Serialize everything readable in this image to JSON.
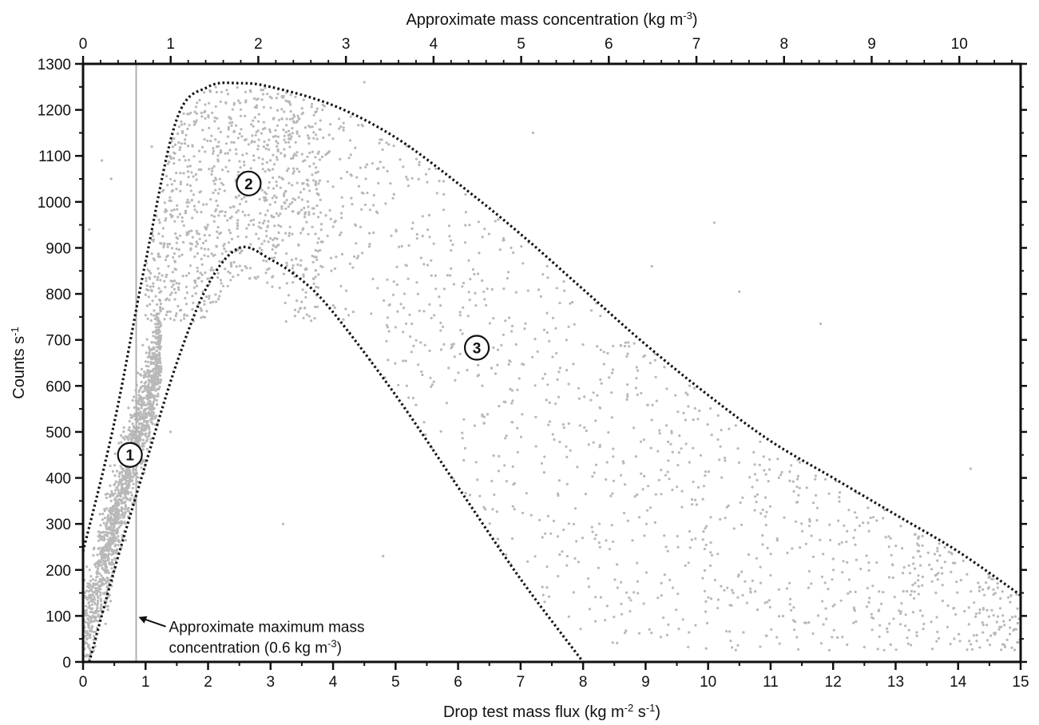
{
  "chart_data": {
    "type": "scatter",
    "title": "",
    "xlabel": "Drop test mass flux (kg m⁻² s⁻¹)",
    "ylabel": "Counts s⁻¹",
    "x2label": "Approximate mass concentration (kg m⁻³)",
    "xlim": [
      0,
      15
    ],
    "ylim": [
      0,
      1300
    ],
    "x2lim": [
      0,
      10.7
    ],
    "x_ticks": [
      "0",
      "1",
      "2",
      "3",
      "4",
      "5",
      "6",
      "7",
      "8",
      "9",
      "10",
      "11",
      "12",
      "13",
      "14",
      "15"
    ],
    "y_ticks": [
      "0",
      "100",
      "200",
      "300",
      "400",
      "500",
      "600",
      "700",
      "800",
      "900",
      "1000",
      "1100",
      "1200",
      "1300"
    ],
    "x2_ticks": [
      "0",
      "1",
      "2",
      "3",
      "4",
      "5",
      "6",
      "7",
      "8",
      "9",
      "10"
    ],
    "grid": false,
    "point_color": "#b8b8b8",
    "envelope_color": "#111111",
    "reference_line_color": "#b0b0b0",
    "reference_line_x": 0.85,
    "series": [
      {
        "kind": "scatter-cloud",
        "regions": [
          {
            "id": 1,
            "x_range": [
              0,
              1.2
            ],
            "y_range": [
              0,
              650
            ],
            "density": "very high"
          },
          {
            "id": 2,
            "x_range": [
              1.0,
              3.5
            ],
            "y_range": [
              700,
              1250
            ],
            "density": "high"
          },
          {
            "id": 3,
            "x_range": [
              3.0,
              15
            ],
            "y_range": [
              0,
              1150
            ],
            "density": "sparse"
          }
        ]
      },
      {
        "kind": "upper-envelope",
        "style": "dotted",
        "points": [
          [
            0,
            240
          ],
          [
            0.5,
            520
          ],
          [
            1.0,
            870
          ],
          [
            1.5,
            1180
          ],
          [
            2.0,
            1250
          ],
          [
            2.5,
            1258
          ],
          [
            3.0,
            1250
          ],
          [
            4.0,
            1210
          ],
          [
            5.0,
            1140
          ],
          [
            6.0,
            1040
          ],
          [
            7.0,
            930
          ],
          [
            8.0,
            810
          ],
          [
            9.0,
            690
          ],
          [
            10.0,
            580
          ],
          [
            11.0,
            480
          ],
          [
            12.0,
            400
          ],
          [
            13.0,
            320
          ],
          [
            14.0,
            240
          ],
          [
            15.0,
            145
          ]
        ]
      },
      {
        "kind": "lower-envelope",
        "style": "dotted",
        "points": [
          [
            0.1,
            0
          ],
          [
            0.5,
            200
          ],
          [
            1.0,
            430
          ],
          [
            1.5,
            650
          ],
          [
            2.0,
            820
          ],
          [
            2.5,
            900
          ],
          [
            3.0,
            875
          ],
          [
            3.5,
            830
          ],
          [
            4.0,
            760
          ],
          [
            5.0,
            580
          ],
          [
            6.0,
            380
          ],
          [
            7.0,
            180
          ],
          [
            8.0,
            0
          ]
        ]
      }
    ],
    "annotations": [
      {
        "id": "region-1",
        "label": "1",
        "x": 0.75,
        "y": 450
      },
      {
        "id": "region-2",
        "label": "2",
        "x": 2.65,
        "y": 1040
      },
      {
        "id": "region-3",
        "label": "3",
        "x": 6.3,
        "y": 683
      },
      {
        "id": "max-conc",
        "lines": [
          "Approximate maximum mass",
          "concentration (0.6 kg m⁻³)"
        ],
        "arrow_to": [
          0.85,
          115
        ]
      }
    ]
  }
}
